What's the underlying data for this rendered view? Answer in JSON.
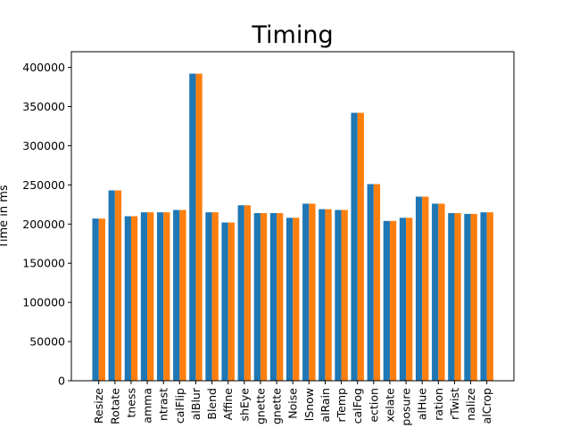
{
  "chart_data": {
    "type": "bar",
    "title": "Timing",
    "xlabel": "",
    "ylabel": "Time in ms",
    "ylim": [
      0,
      420000
    ],
    "yticks": [
      0,
      50000,
      100000,
      150000,
      200000,
      250000,
      300000,
      350000,
      400000
    ],
    "grid": false,
    "legend": "none",
    "categories": [
      "Resize",
      "Rotate",
      "tness",
      "amma",
      "ntrast",
      "calFlip",
      "alBlur",
      "Blend",
      "Affine",
      "shEye",
      "gnette",
      "gnette",
      "Noise",
      "lSnow",
      "alRain",
      "rTemp",
      "calFog",
      "ection",
      "xelate",
      "posure",
      "alHue",
      "ration",
      "rTwist",
      "nalize",
      "alCrop"
    ],
    "series": [
      {
        "color": "#1f77b4",
        "values": [
          207000,
          243000,
          210000,
          215000,
          215000,
          218000,
          392000,
          215000,
          202000,
          224000,
          214000,
          214000,
          208000,
          226000,
          219000,
          218000,
          342000,
          251000,
          204000,
          208000,
          235000,
          226000,
          214000,
          213000,
          215000
        ]
      },
      {
        "color": "#ff7f0e",
        "values": [
          207000,
          243000,
          210000,
          215000,
          215000,
          218000,
          392000,
          215000,
          202000,
          224000,
          214000,
          214000,
          208000,
          226000,
          219000,
          218000,
          342000,
          251000,
          204000,
          208000,
          235000,
          226000,
          214000,
          213000,
          215000
        ]
      }
    ]
  }
}
